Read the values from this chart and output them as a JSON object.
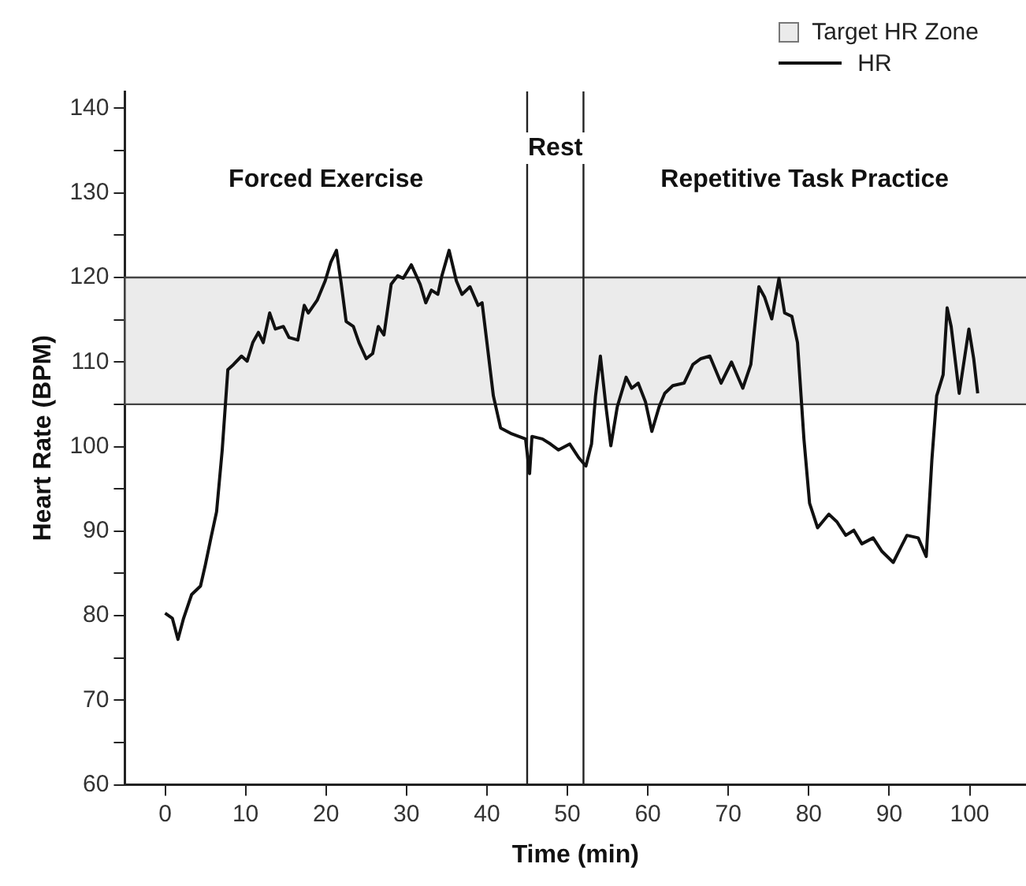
{
  "chart_data": {
    "type": "line",
    "xlabel": "Time (min)",
    "ylabel": "Heart Rate (BPM)",
    "xlim": [
      -5,
      107
    ],
    "ylim": [
      60,
      142
    ],
    "xticks": [
      0,
      10,
      20,
      30,
      40,
      50,
      60,
      70,
      80,
      90,
      100
    ],
    "yticks": [
      60,
      {
        "value": 65,
        "label": null
      },
      70,
      {
        "value": 75,
        "label": null
      },
      80,
      {
        "value": 85,
        "label": null
      },
      90,
      {
        "value": 95,
        "label": null
      },
      100,
      {
        "value": 105,
        "label": null
      },
      110,
      {
        "value": 115,
        "label": null
      },
      120,
      {
        "value": 125,
        "label": null
      },
      130,
      {
        "value": 135,
        "label": null
      },
      140
    ],
    "grid": false,
    "legend": "top right",
    "marker": "none",
    "line_style": "solid",
    "series": [
      {
        "name": "HR",
        "color": "#111111",
        "x": [
          0,
          0.9,
          1.6,
          2.3,
          3.3,
          4.4,
          5,
          5.7,
          6.4,
          7.1,
          7.8,
          8.5,
          9.5,
          10.2,
          10.9,
          11.6,
          12.2,
          13,
          13.7,
          14.7,
          15.4,
          16.5,
          17.3,
          17.8,
          18.9,
          19.9,
          20.6,
          21.3,
          21.9,
          22.5,
          23.4,
          24.1,
          25,
          25.8,
          26.5,
          27.2,
          28.1,
          28.9,
          29.6,
          30.6,
          31.7,
          32.4,
          33.1,
          33.9,
          34.4,
          35.3,
          36.2,
          36.9,
          37.9,
          38.9,
          39.4,
          40,
          40.8,
          41.7,
          43.1,
          44.8,
          45.3,
          45.6,
          46.9,
          47.9,
          48.9,
          50.3,
          51.4,
          52.3,
          53,
          53.5,
          54.1,
          54.8,
          55.4,
          56.2,
          57.3,
          58,
          58.8,
          59.7,
          60.5,
          61.4,
          62.1,
          63.1,
          64.5,
          65.6,
          66.6,
          67.7,
          69.1,
          70.4,
          71.8,
          72.8,
          73.8,
          74.5,
          75.4,
          76.3,
          77,
          77.9,
          78.6,
          79.4,
          80.1,
          81.1,
          82.5,
          83.5,
          84.6,
          85.6,
          86.6,
          88,
          89.1,
          90.5,
          91.5,
          92.2,
          93.6,
          94.6,
          95.3,
          95.9,
          96.7,
          97.2,
          97.7,
          98.7,
          99.9,
          100.5,
          101
        ],
        "values": [
          80.3,
          79.7,
          77.2,
          79.7,
          82.5,
          83.5,
          86,
          89.2,
          92.3,
          99.6,
          109.1,
          109.7,
          110.7,
          110.1,
          112.3,
          113.5,
          112.3,
          115.8,
          113.9,
          114.2,
          112.9,
          112.6,
          116.7,
          115.8,
          117.3,
          119.6,
          121.8,
          123.2,
          119.2,
          114.8,
          114.2,
          112.3,
          110.4,
          111,
          114.2,
          113.2,
          119.2,
          120.2,
          119.9,
          121.5,
          119.2,
          117,
          118.5,
          118,
          120.2,
          123.2,
          119.6,
          118,
          118.9,
          116.7,
          117,
          112.3,
          106,
          102.2,
          101.5,
          100.9,
          96.8,
          101.2,
          100.9,
          100.3,
          99.6,
          100.3,
          98.7,
          97.7,
          100.3,
          106,
          110.7,
          104.7,
          100.1,
          104.7,
          108.2,
          106.9,
          107.5,
          105.3,
          101.8,
          104.7,
          106.3,
          107.2,
          107.5,
          109.7,
          110.4,
          110.7,
          107.5,
          110,
          106.9,
          109.7,
          118.9,
          117.7,
          115.1,
          119.9,
          115.8,
          115.4,
          112.3,
          100.9,
          93.3,
          90.4,
          92,
          91.1,
          89.5,
          90.1,
          88.5,
          89.2,
          87.6,
          86.3,
          88.2,
          89.5,
          89.2,
          87,
          98.4,
          106,
          108.5,
          116.4,
          114.2,
          106.3,
          113.9,
          110.4,
          106.3
        ]
      }
    ],
    "bands": [
      {
        "axis": "y",
        "from": 105,
        "to": 120,
        "label": "Target HR Zone",
        "color": "#ebebeb"
      }
    ],
    "ref_lines": [
      {
        "axis": "x",
        "value": 45
      },
      {
        "axis": "x",
        "value": 52
      }
    ],
    "annotations": [
      "Forced Exercise",
      "Rest",
      "Repetitive Task Practice"
    ]
  }
}
